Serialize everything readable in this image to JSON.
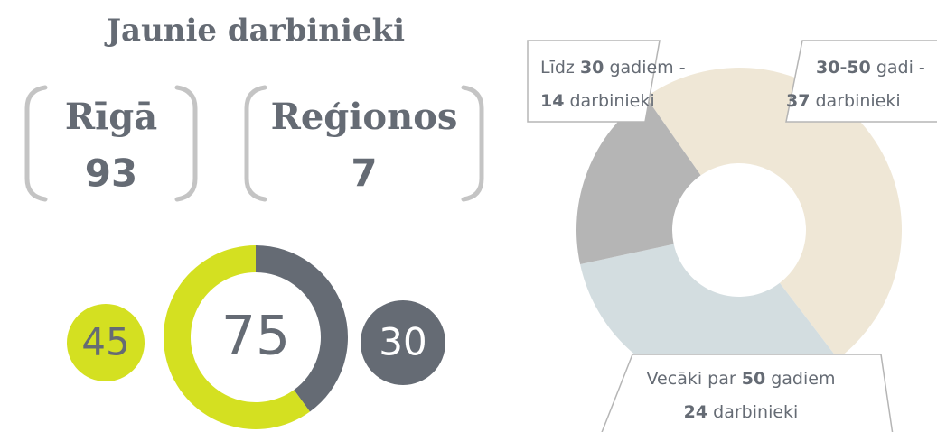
{
  "title": "Jaunie darbinieki",
  "locations": [
    {
      "name": "Rīgā",
      "count": 93
    },
    {
      "name": "Reģionos",
      "count": 7
    }
  ],
  "chart_data": [
    {
      "type": "donut",
      "total": 75,
      "values": [
        30,
        45
      ],
      "colors": [
        "#656b74",
        "#d4e021"
      ]
    },
    {
      "type": "donut",
      "values": [
        37,
        24,
        14
      ],
      "colors": [
        "#efe7d6",
        "#d3dde0",
        "#b5b5b5"
      ],
      "labels": [
        {
          "age": "30-50",
          "after": "gadi -",
          "unit": "darbinieki"
        },
        {
          "before": "Vecāki par",
          "age": 50,
          "after": "gadiem",
          "unit": "darbinieki"
        },
        {
          "before": "Līdz",
          "age": 30,
          "after": "gadiem -",
          "unit": "darbinieki"
        }
      ]
    }
  ]
}
